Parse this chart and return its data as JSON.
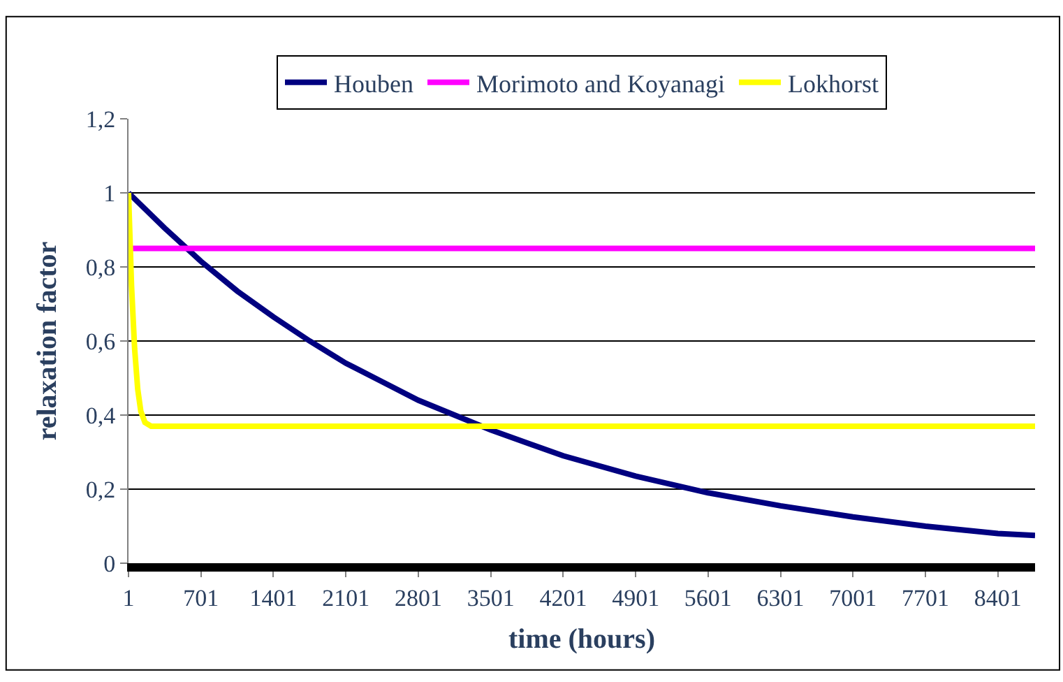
{
  "chart_data": {
    "type": "line",
    "xlabel": "time (hours)",
    "ylabel": "relaxation factor",
    "series": [
      {
        "name": "Houben",
        "color": "#000080",
        "x": [
          1,
          350,
          701,
          1051,
          1401,
          1751,
          2101,
          2451,
          2801,
          3151,
          3501,
          4201,
          4901,
          5601,
          6301,
          7001,
          7701,
          8401,
          8760
        ],
        "values": [
          1,
          0.905,
          0.815,
          0.735,
          0.665,
          0.6,
          0.54,
          0.49,
          0.44,
          0.4,
          0.36,
          0.29,
          0.235,
          0.19,
          0.155,
          0.125,
          0.1,
          0.08,
          0.075
        ]
      },
      {
        "name": "Morimoto and Koyanagi",
        "color": "#ff00ff",
        "x": [
          1,
          8760
        ],
        "values": [
          0.85,
          0.85
        ]
      },
      {
        "name": "Lokhorst",
        "color": "#ffff00",
        "x": [
          1,
          30,
          60,
          90,
          120,
          160,
          220,
          8760
        ],
        "values": [
          1,
          0.75,
          0.58,
          0.47,
          0.41,
          0.38,
          0.37,
          0.37
        ]
      }
    ],
    "xlim": [
      1,
      8760
    ],
    "xticks": [
      1,
      701,
      1401,
      2101,
      2801,
      3501,
      4201,
      4901,
      5601,
      6301,
      7001,
      7701,
      8401
    ],
    "ylim": [
      0,
      1.2
    ],
    "yticks": [
      0,
      {
        "value": 0.2,
        "label": "0,2"
      },
      {
        "value": 0.4,
        "label": "0,4"
      },
      {
        "value": 0.6,
        "label": "0,6"
      },
      {
        "value": 0.8,
        "label": "0,8"
      },
      1,
      {
        "value": 1.2,
        "label": "1,2"
      }
    ],
    "grid": "y",
    "legend": "top",
    "marker": "none",
    "line_style": "solid"
  }
}
